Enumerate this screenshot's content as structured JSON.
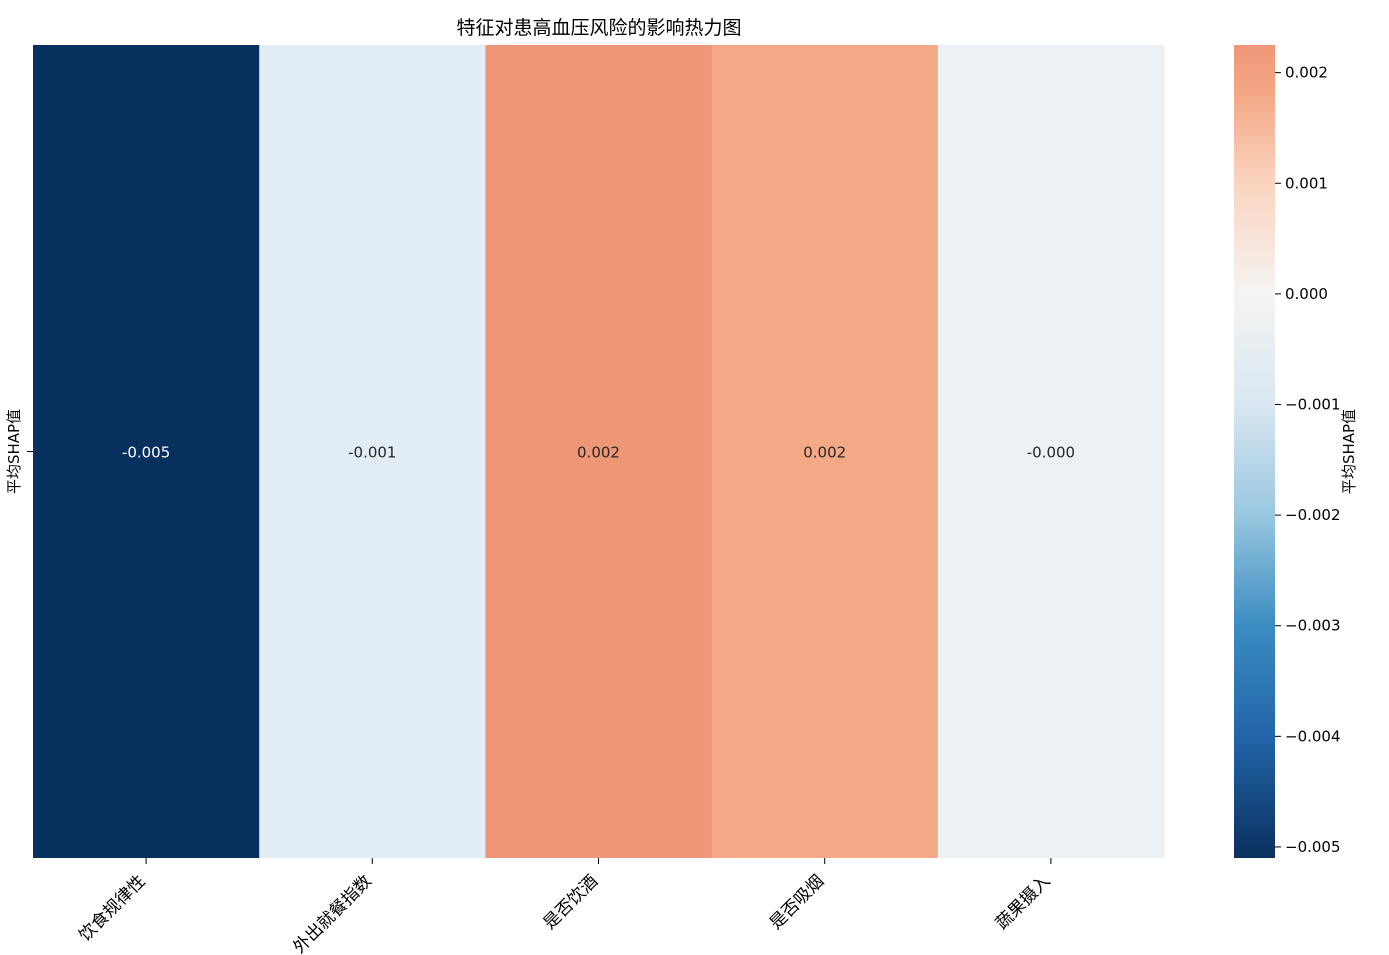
{
  "chart_data": {
    "type": "heatmap",
    "title": "特征对患高血压风险的影响热力图",
    "xlabel": "",
    "ylabel": "",
    "row_labels": [
      "平均SHAP值"
    ],
    "categories": [
      "饮食规律性",
      "外出就餐指数",
      "是否饮酒",
      "是否吸烟",
      "蔬果摄入"
    ],
    "values": [
      -0.005,
      -0.001,
      0.002,
      0.002,
      -0.0
    ],
    "annotations": [
      "-0.005",
      "-0.001",
      "0.002",
      "0.002",
      "-0.000"
    ],
    "cell_colors": [
      "#08305e",
      "#e2ecf4",
      "#ef9677",
      "#f3a886",
      "#ebf1f4"
    ],
    "colorbar": {
      "label": "平均SHAP值",
      "range": [
        -0.0051,
        0.00225
      ],
      "ticks": [
        0.002,
        0.001,
        0.0,
        -0.001,
        -0.002,
        -0.003,
        -0.004,
        -0.005
      ],
      "tick_labels": [
        "0.002",
        "0.001",
        "0.000",
        "−0.001",
        "−0.002",
        "−0.003",
        "−0.004",
        "−0.005"
      ],
      "colormap": "RdBu_r",
      "stops": [
        {
          "v": -0.0051,
          "color": "#0a305f"
        },
        {
          "v": -0.004,
          "color": "#2265a8"
        },
        {
          "v": -0.003,
          "color": "#3b8cc2"
        },
        {
          "v": -0.002,
          "color": "#99c7e0"
        },
        {
          "v": -0.001,
          "color": "#d9e7f1"
        },
        {
          "v": 0.0,
          "color": "#f5f4f3"
        },
        {
          "v": 0.001,
          "color": "#fbd4bf"
        },
        {
          "v": 0.0018,
          "color": "#f4a886"
        },
        {
          "v": 0.00225,
          "color": "#ef9677"
        }
      ]
    }
  }
}
